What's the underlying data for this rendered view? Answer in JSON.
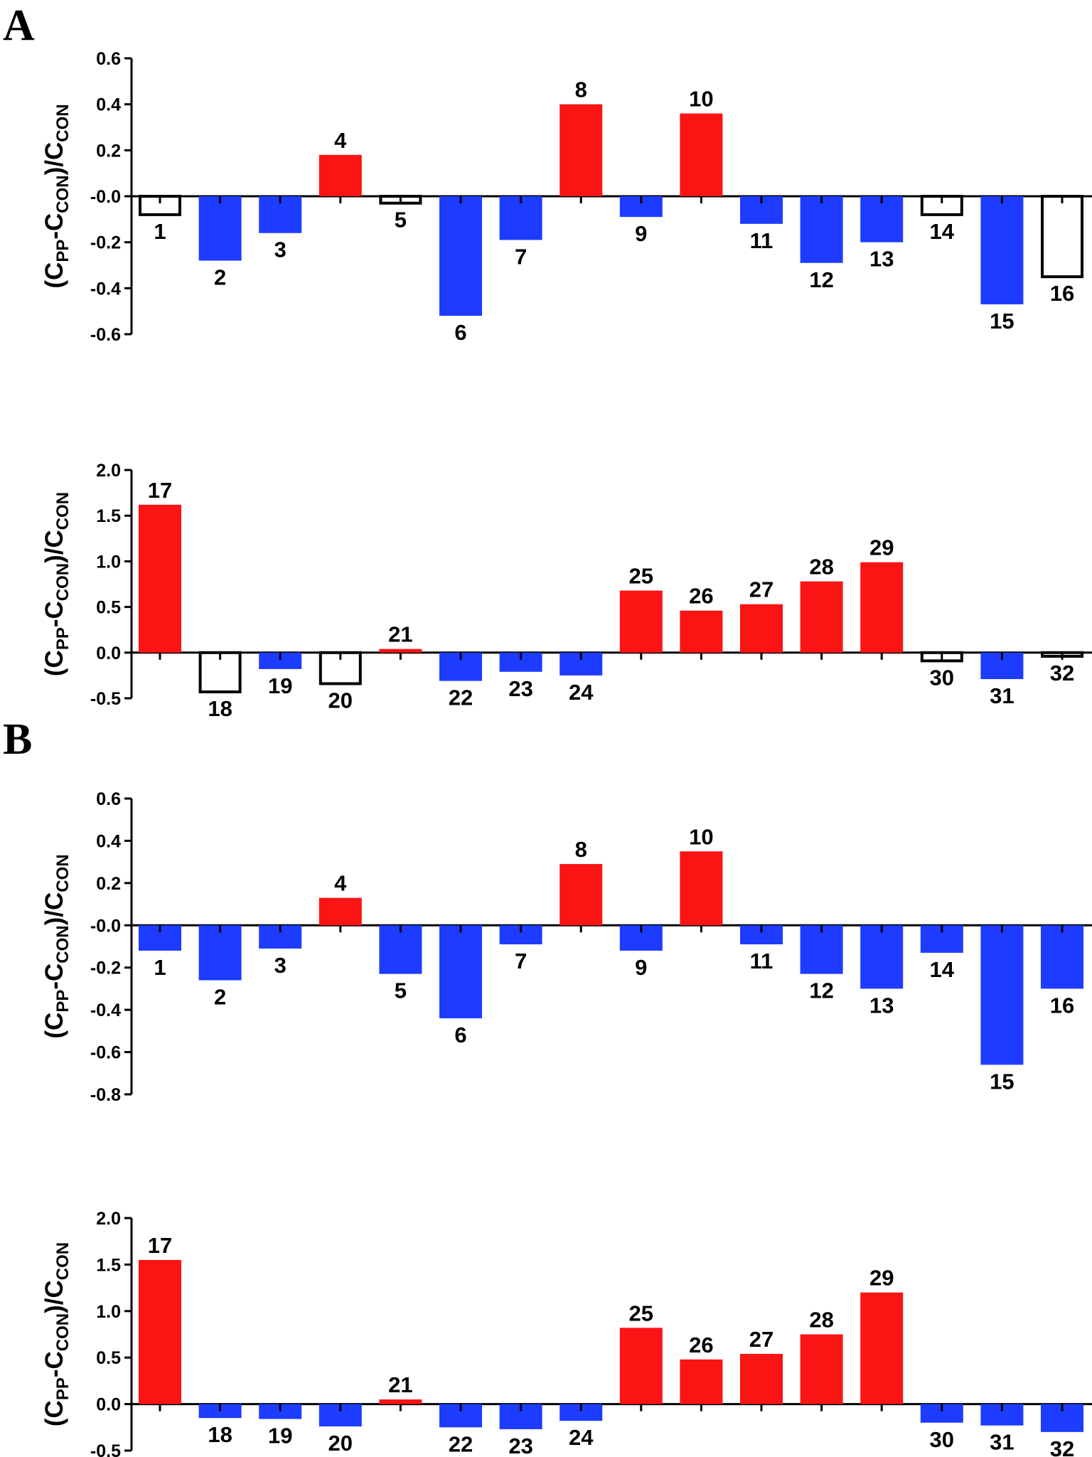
{
  "panels": [
    {
      "letter": "A"
    },
    {
      "letter": "B"
    }
  ],
  "ylabel": {
    "open": "(C",
    "pp": "PP",
    "dash": "-C",
    "con": "CON",
    "mid": ")/C",
    "con2": "CON"
  },
  "colors": {
    "increase": "#fa1414",
    "decrease": "#1e3cff",
    "not_significant": "#ffffff",
    "outline": "#000000"
  },
  "chart_data": [
    {
      "type": "bar",
      "panel": "A",
      "categories": [
        "1",
        "2",
        "3",
        "4",
        "5",
        "6",
        "7",
        "8",
        "9",
        "10",
        "11",
        "12",
        "13",
        "14",
        "15",
        "16"
      ],
      "values": [
        -0.08,
        -0.28,
        -0.16,
        0.18,
        -0.03,
        -0.52,
        -0.19,
        0.4,
        -0.09,
        0.36,
        -0.12,
        -0.29,
        -0.2,
        -0.08,
        -0.47,
        -0.35
      ],
      "fill": [
        "open",
        "decrease",
        "decrease",
        "increase",
        "open",
        "decrease",
        "decrease",
        "increase",
        "decrease",
        "increase",
        "decrease",
        "decrease",
        "decrease",
        "open",
        "decrease",
        "open"
      ],
      "yticks": [
        "0.6",
        "0.4",
        "0.2",
        "-0.0",
        "-0.2",
        "-0.4",
        "-0.6"
      ],
      "ylim": [
        -0.6,
        0.6
      ],
      "xlabel": ""
    },
    {
      "type": "bar",
      "panel": "A",
      "categories": [
        "17",
        "18",
        "19",
        "20",
        "21",
        "22",
        "23",
        "24",
        "25",
        "26",
        "27",
        "28",
        "29",
        "30",
        "31",
        "32"
      ],
      "values": [
        1.62,
        -0.43,
        -0.18,
        -0.34,
        0.04,
        -0.31,
        -0.21,
        -0.25,
        0.68,
        0.46,
        0.53,
        0.78,
        0.99,
        -0.09,
        -0.29,
        -0.04
      ],
      "fill": [
        "increase",
        "open",
        "decrease",
        "open",
        "increase",
        "decrease",
        "decrease",
        "decrease",
        "increase",
        "increase",
        "increase",
        "increase",
        "increase",
        "open",
        "decrease",
        "open"
      ],
      "yticks": [
        "2.0",
        "1.5",
        "1.0",
        "0.5",
        "0.0",
        "-0.5"
      ],
      "ylim": [
        -0.5,
        2.0
      ],
      "xlabel": ""
    },
    {
      "type": "bar",
      "panel": "B",
      "categories": [
        "1",
        "2",
        "3",
        "4",
        "5",
        "6",
        "7",
        "8",
        "9",
        "10",
        "11",
        "12",
        "13",
        "14",
        "15",
        "16"
      ],
      "values": [
        -0.12,
        -0.26,
        -0.11,
        0.13,
        -0.23,
        -0.44,
        -0.09,
        0.29,
        -0.12,
        0.35,
        -0.09,
        -0.23,
        -0.3,
        -0.13,
        -0.66,
        -0.3
      ],
      "fill": [
        "decrease",
        "decrease",
        "decrease",
        "increase",
        "decrease",
        "decrease",
        "decrease",
        "increase",
        "decrease",
        "increase",
        "decrease",
        "decrease",
        "decrease",
        "decrease",
        "decrease",
        "decrease"
      ],
      "yticks": [
        "0.6",
        "0.4",
        "0.2",
        "-0.0",
        "-0.2",
        "-0.4",
        "-0.6",
        "-0.8"
      ],
      "ylim": [
        -0.8,
        0.6
      ],
      "xlabel": ""
    },
    {
      "type": "bar",
      "panel": "B",
      "categories": [
        "17",
        "18",
        "19",
        "20",
        "21",
        "22",
        "23",
        "24",
        "25",
        "26",
        "27",
        "28",
        "29",
        "30",
        "31",
        "32"
      ],
      "values": [
        1.55,
        -0.15,
        -0.16,
        -0.24,
        0.05,
        -0.25,
        -0.27,
        -0.18,
        0.82,
        0.48,
        0.54,
        0.75,
        1.2,
        -0.2,
        -0.23,
        -0.3
      ],
      "fill": [
        "increase",
        "decrease",
        "decrease",
        "decrease",
        "increase",
        "decrease",
        "decrease",
        "decrease",
        "increase",
        "increase",
        "increase",
        "increase",
        "increase",
        "decrease",
        "decrease",
        "decrease"
      ],
      "yticks": [
        "2.0",
        "1.5",
        "1.0",
        "0.5",
        "0.0",
        "-0.5"
      ],
      "ylim": [
        -0.5,
        2.0
      ],
      "xlabel": ""
    }
  ]
}
